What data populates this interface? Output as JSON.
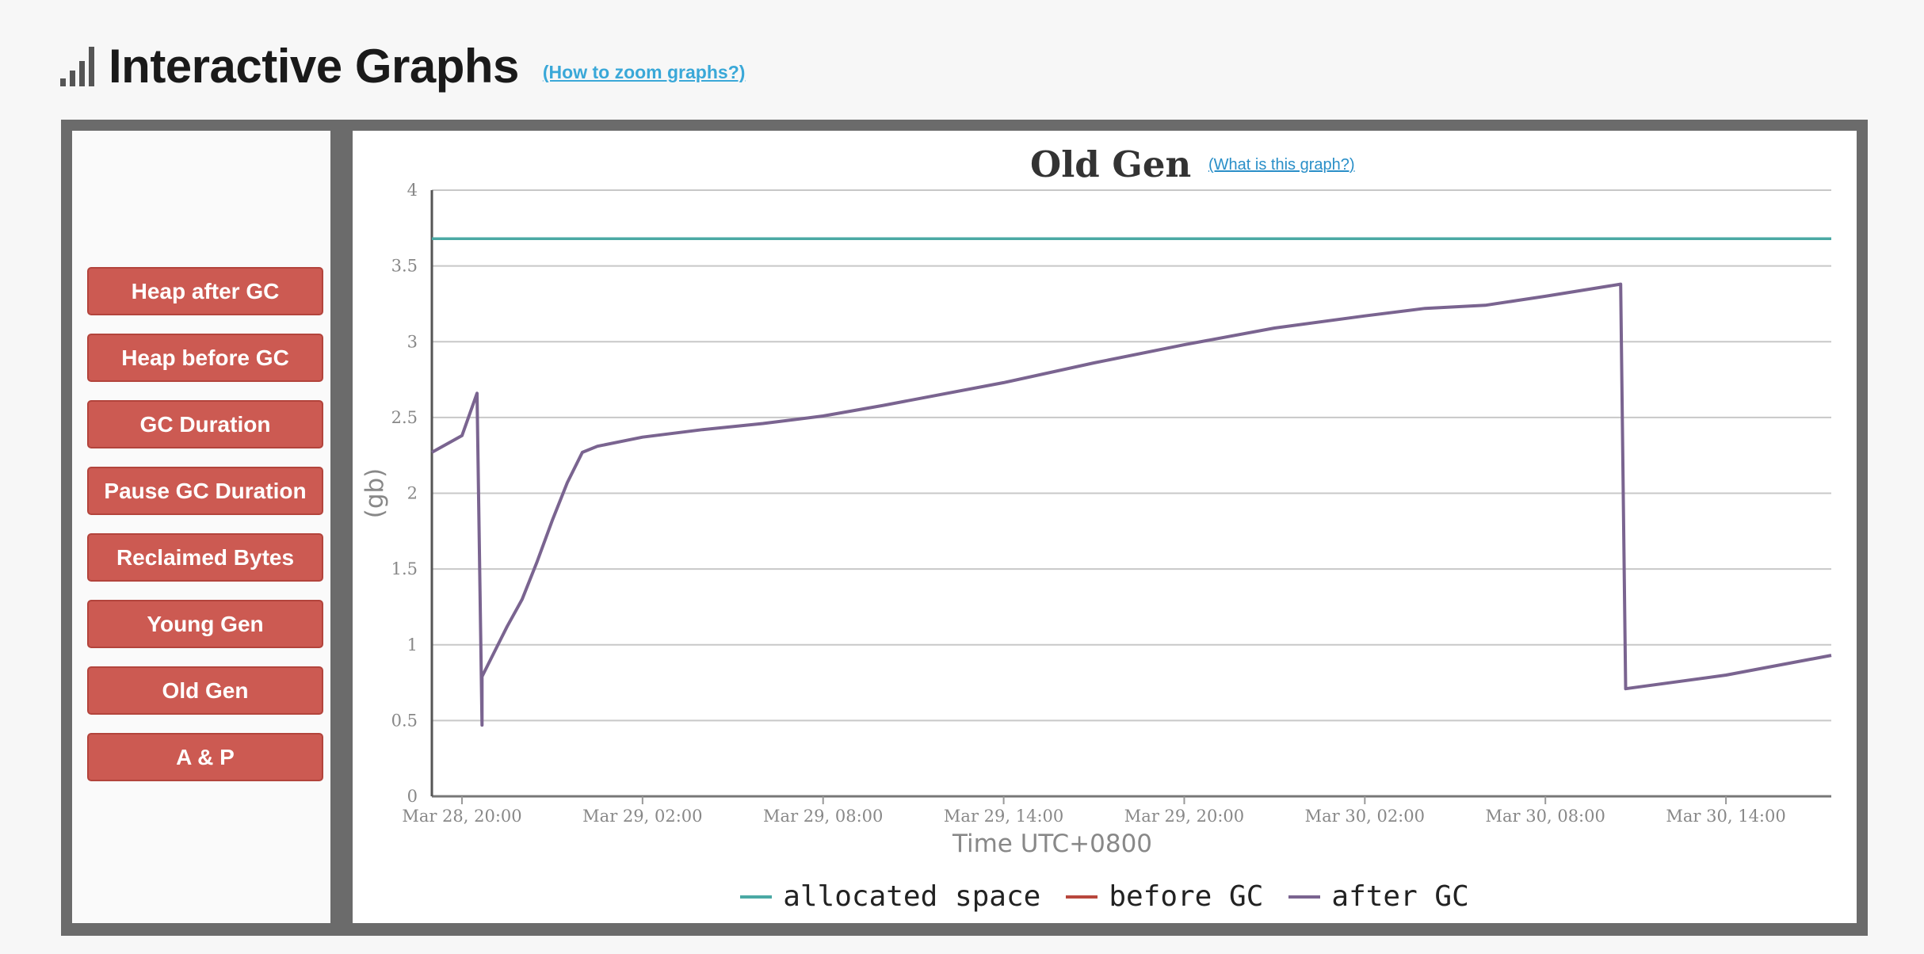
{
  "header": {
    "title": "Interactive Graphs",
    "help_link": "(How to zoom graphs?)"
  },
  "sidebar": {
    "items": [
      {
        "label": "Heap after GC"
      },
      {
        "label": "Heap before GC"
      },
      {
        "label": "GC Duration"
      },
      {
        "label": "Pause GC Duration"
      },
      {
        "label": "Reclaimed Bytes"
      },
      {
        "label": "Young Gen"
      },
      {
        "label": "Old Gen"
      },
      {
        "label": "A & P"
      }
    ]
  },
  "chart_link": "(What is this graph?)",
  "colors": {
    "allocated": "#4aa9a4",
    "before": "#b8473d",
    "after": "#7a6490",
    "button": "#cc5a52"
  },
  "chart_data": {
    "type": "line",
    "title": "Old Gen",
    "xlabel": "Time UTC+0800",
    "ylabel": "(gb)",
    "ylim": [
      0,
      4
    ],
    "yticks": [
      "0",
      "0.5",
      "1",
      "1.5",
      "2",
      "2.5",
      "3",
      "3.5",
      "4"
    ],
    "xlim": [
      "2024-03-28T19:00",
      "2024-03-30T17:30"
    ],
    "xticks": [
      {
        "t": "2024-03-28T20:00",
        "label": "Mar 28, 20:00"
      },
      {
        "t": "2024-03-29T02:00",
        "label": "Mar 29, 02:00"
      },
      {
        "t": "2024-03-29T08:00",
        "label": "Mar 29, 08:00"
      },
      {
        "t": "2024-03-29T14:00",
        "label": "Mar 29, 14:00"
      },
      {
        "t": "2024-03-29T20:00",
        "label": "Mar 29, 20:00"
      },
      {
        "t": "2024-03-30T02:00",
        "label": "Mar 30, 02:00"
      },
      {
        "t": "2024-03-30T08:00",
        "label": "Mar 30, 08:00"
      },
      {
        "t": "2024-03-30T14:00",
        "label": "Mar 30, 14:00"
      }
    ],
    "grid": true,
    "legend_position": "bottom-center",
    "series": [
      {
        "name": "allocated space",
        "color": "#4aa9a4",
        "points": [
          [
            "2024-03-28T19:00",
            3.68
          ],
          [
            "2024-03-30T17:30",
            3.68
          ]
        ]
      },
      {
        "name": "before GC",
        "color": "#b8473d",
        "points": []
      },
      {
        "name": "after GC",
        "color": "#7a6490",
        "points": [
          [
            "2024-03-28T19:00",
            2.27
          ],
          [
            "2024-03-28T20:00",
            2.38
          ],
          [
            "2024-03-28T20:30",
            2.66
          ],
          [
            "2024-03-28T20:40",
            0.47
          ],
          [
            "2024-03-28T20:40",
            0.79
          ],
          [
            "2024-03-28T21:30",
            1.12
          ],
          [
            "2024-03-28T22:00",
            1.3
          ],
          [
            "2024-03-28T22:30",
            1.55
          ],
          [
            "2024-03-28T23:00",
            1.82
          ],
          [
            "2024-03-28T23:30",
            2.07
          ],
          [
            "2024-03-29T00:00",
            2.27
          ],
          [
            "2024-03-29T00:30",
            2.31
          ],
          [
            "2024-03-29T02:00",
            2.37
          ],
          [
            "2024-03-29T04:00",
            2.42
          ],
          [
            "2024-03-29T06:00",
            2.46
          ],
          [
            "2024-03-29T08:00",
            2.51
          ],
          [
            "2024-03-29T10:00",
            2.58
          ],
          [
            "2024-03-29T14:00",
            2.73
          ],
          [
            "2024-03-29T17:00",
            2.86
          ],
          [
            "2024-03-29T20:00",
            2.98
          ],
          [
            "2024-03-29T23:00",
            3.09
          ],
          [
            "2024-03-30T02:00",
            3.17
          ],
          [
            "2024-03-30T04:00",
            3.22
          ],
          [
            "2024-03-30T06:00",
            3.24
          ],
          [
            "2024-03-30T08:00",
            3.3
          ],
          [
            "2024-03-30T10:30",
            3.38
          ],
          [
            "2024-03-30T10:40",
            0.71
          ],
          [
            "2024-03-30T14:00",
            0.8
          ],
          [
            "2024-03-30T17:30",
            0.93
          ]
        ]
      }
    ]
  }
}
